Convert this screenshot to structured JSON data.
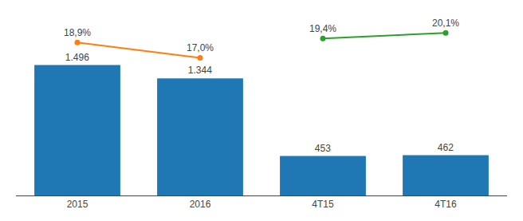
{
  "chart_data": {
    "type": "bar",
    "categories": [
      "2015",
      "2016",
      "4T15",
      "4T16"
    ],
    "series": [
      {
        "type": "bar",
        "values": [
          1496,
          1344,
          453,
          462
        ],
        "value_labels": [
          "1.496",
          "1.344",
          "453",
          "462"
        ],
        "data_labels": true
      },
      {
        "type": "line",
        "axis": "y2",
        "marker": "circle",
        "values": [
          18.9,
          17.0,
          null,
          null
        ],
        "value_labels": [
          "18,9%",
          "17,0%",
          null,
          null
        ],
        "data_labels": true
      },
      {
        "type": "line",
        "axis": "y2",
        "marker": "circle",
        "values": [
          null,
          null,
          19.4,
          20.1
        ],
        "value_labels": [
          null,
          null,
          "19,4%",
          "20,1%"
        ],
        "data_labels": true
      }
    ],
    "ylim": [
      0,
      1950
    ],
    "y2lim": [
      0,
      21
    ],
    "grid": false,
    "tick_labels": "x"
  }
}
